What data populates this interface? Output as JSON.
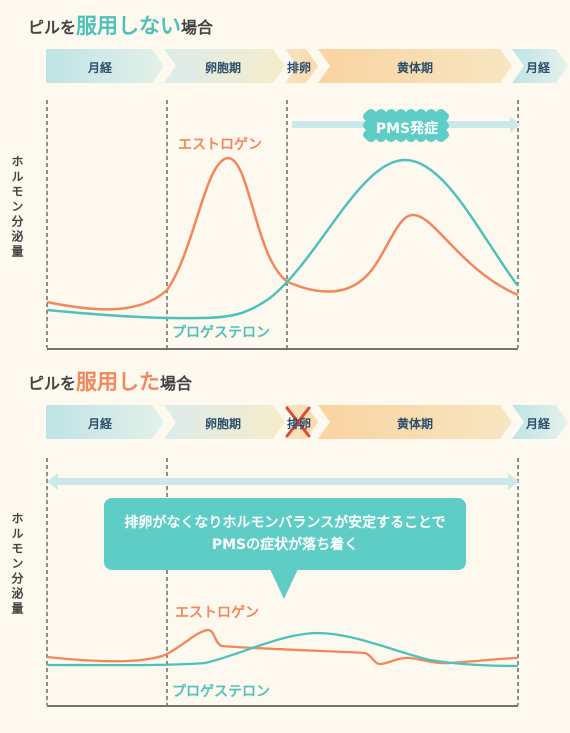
{
  "section1": {
    "title_pre": "ピルを",
    "title_emph": "服用しない",
    "title_post": "場合",
    "phases": [
      "月経",
      "卵胞期",
      "排卵",
      "黄体期",
      "月経"
    ],
    "ylabel": "ホルモン分泌量",
    "estrogen_label": "エストロゲン",
    "progesterone_label": "プロゲステロン",
    "pms_label": "PMS発症"
  },
  "section2": {
    "title_pre": "ピルを",
    "title_emph": "服用した",
    "title_post": "場合",
    "phases": [
      "月経",
      "卵胞期",
      "排卵",
      "黄体期",
      "月経"
    ],
    "ylabel": "ホルモン分泌量",
    "bubble_line1": "排卵がなくなりホルモンバランスが安定することで",
    "bubble_line2": "PMSの症状が落ち着く",
    "estrogen_label": "エストロゲン",
    "progesterone_label": "プロゲステロン"
  },
  "colors": {
    "estrogen": "#f3875c",
    "progesterone": "#4fc1bb",
    "menstruation": "#c7e6e8",
    "follicular": "#e7efe4",
    "luteal": "#fbd9a5",
    "arrow": "#cbe8ea"
  }
}
